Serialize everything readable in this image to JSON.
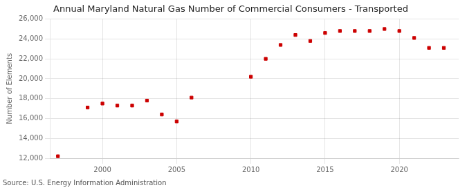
{
  "chart_data": {
    "type": "scatter",
    "title": "Annual Maryland Natural Gas Number of Commercial Consumers - Transported",
    "ylabel": "Number of Elements",
    "annotations": [
      "Source: U.S. Energy Information Administration"
    ],
    "x": [
      1997,
      1999,
      2000,
      2001,
      2002,
      2003,
      2004,
      2005,
      2006,
      2010,
      2011,
      2012,
      2013,
      2014,
      2015,
      2016,
      2017,
      2018,
      2019,
      2020,
      2021,
      2022,
      2023
    ],
    "values": [
      12200,
      17100,
      17500,
      17300,
      17300,
      17800,
      16400,
      15700,
      18100,
      20200,
      22000,
      23400,
      24400,
      23800,
      24600,
      24800,
      24800,
      24800,
      25000,
      24800,
      24100,
      23100,
      23100
    ],
    "color": "#cc0000",
    "marker": "square",
    "xlim": [
      1996.5,
      2024
    ],
    "xticks": [
      2000,
      2005,
      2010,
      2015,
      2020
    ],
    "ylim": [
      12000,
      26000
    ],
    "yticks": [
      {
        "value": 12000,
        "label": "12,000"
      },
      {
        "value": 14000,
        "label": "14,000"
      },
      {
        "value": 16000,
        "label": "16,000"
      },
      {
        "value": 18000,
        "label": "18,000"
      },
      {
        "value": 20000,
        "label": "20,000"
      },
      {
        "value": 22000,
        "label": "22,000"
      },
      {
        "value": 24000,
        "label": "24,000"
      },
      {
        "value": 26000,
        "label": "26,000"
      }
    ],
    "grid": true
  }
}
